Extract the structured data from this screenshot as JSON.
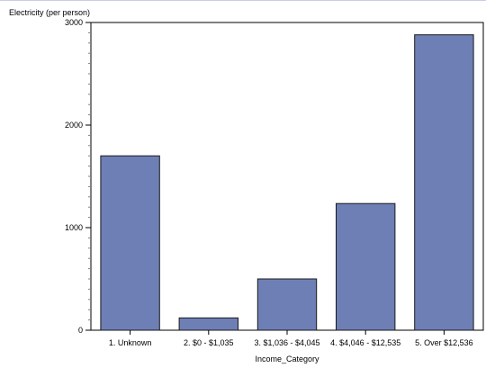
{
  "chart_data": {
    "type": "bar",
    "title": "",
    "xlabel": "Income_Category",
    "ylabel": "Electricity (per person)",
    "categories": [
      "1. Unknown",
      "2. $0 - $1,035",
      "3. $1,036 - $4,045",
      "4. $4,046 - $12,535",
      "5. Over $12,536"
    ],
    "values": [
      1700,
      120,
      500,
      1235,
      2880
    ],
    "ylim": [
      0,
      3000
    ],
    "yticks": [
      0,
      1000,
      2000,
      3000
    ],
    "y_minor_step": 100,
    "grid": false,
    "legend": "none",
    "colors": {
      "bar_fill": "#6e7fb5",
      "bar_stroke": "#1a1a1a",
      "frame_border": "#c8cde6",
      "axis": "#000000"
    }
  }
}
